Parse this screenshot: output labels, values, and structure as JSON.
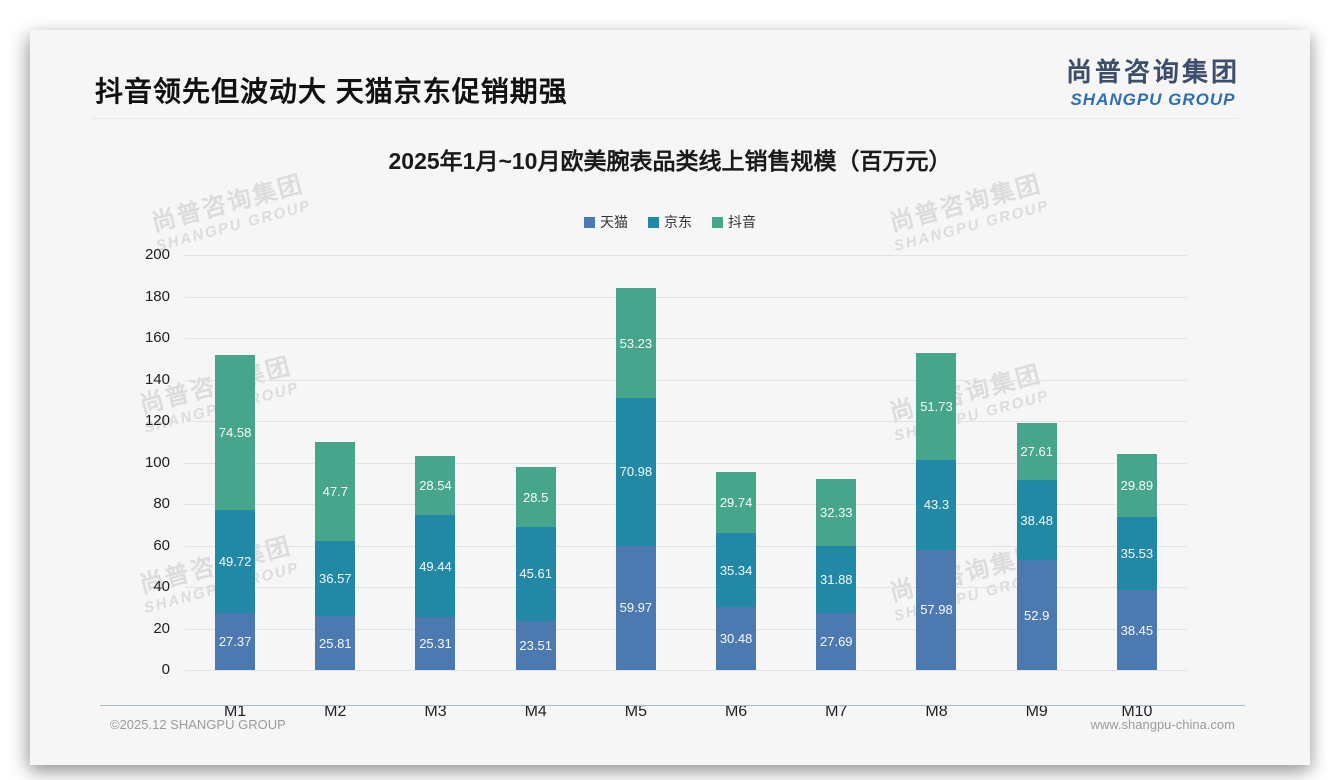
{
  "page": {
    "slide_title": "抖音领先但波动大 天猫京东促销期强",
    "logo": {
      "cn": "尚普咨询集团",
      "en": "SHANGPU GROUP"
    },
    "watermark": {
      "cn": "尚普咨询集团",
      "en": "SHANGPU GROUP"
    },
    "footer": {
      "left": "©2025.12 SHANGPU GROUP",
      "right": "www.shangpu-china.com"
    }
  },
  "chart_data": {
    "type": "bar",
    "stacked": true,
    "title": "2025年1月~10月欧美腕表品类线上销售规模（百万元）",
    "categories": [
      "M1",
      "M2",
      "M3",
      "M4",
      "M5",
      "M6",
      "M7",
      "M8",
      "M9",
      "M10"
    ],
    "series": [
      {
        "name": "天猫",
        "color": "#4c79b0",
        "values": [
          27.37,
          25.81,
          25.31,
          23.51,
          59.97,
          30.48,
          27.69,
          57.98,
          52.9,
          38.45
        ]
      },
      {
        "name": "京东",
        "color": "#2189a5",
        "values": [
          49.72,
          36.57,
          49.44,
          45.61,
          70.98,
          35.34,
          31.88,
          43.3,
          38.48,
          35.53
        ]
      },
      {
        "name": "抖音",
        "color": "#47a58c",
        "values": [
          74.58,
          47.7,
          28.54,
          28.5,
          53.23,
          29.74,
          32.33,
          51.73,
          27.61,
          29.89
        ]
      }
    ],
    "xlabel": "",
    "ylabel": "",
    "ylim": [
      0,
      200
    ],
    "ytick_step": 20,
    "grid": true,
    "legend_position": "top"
  }
}
